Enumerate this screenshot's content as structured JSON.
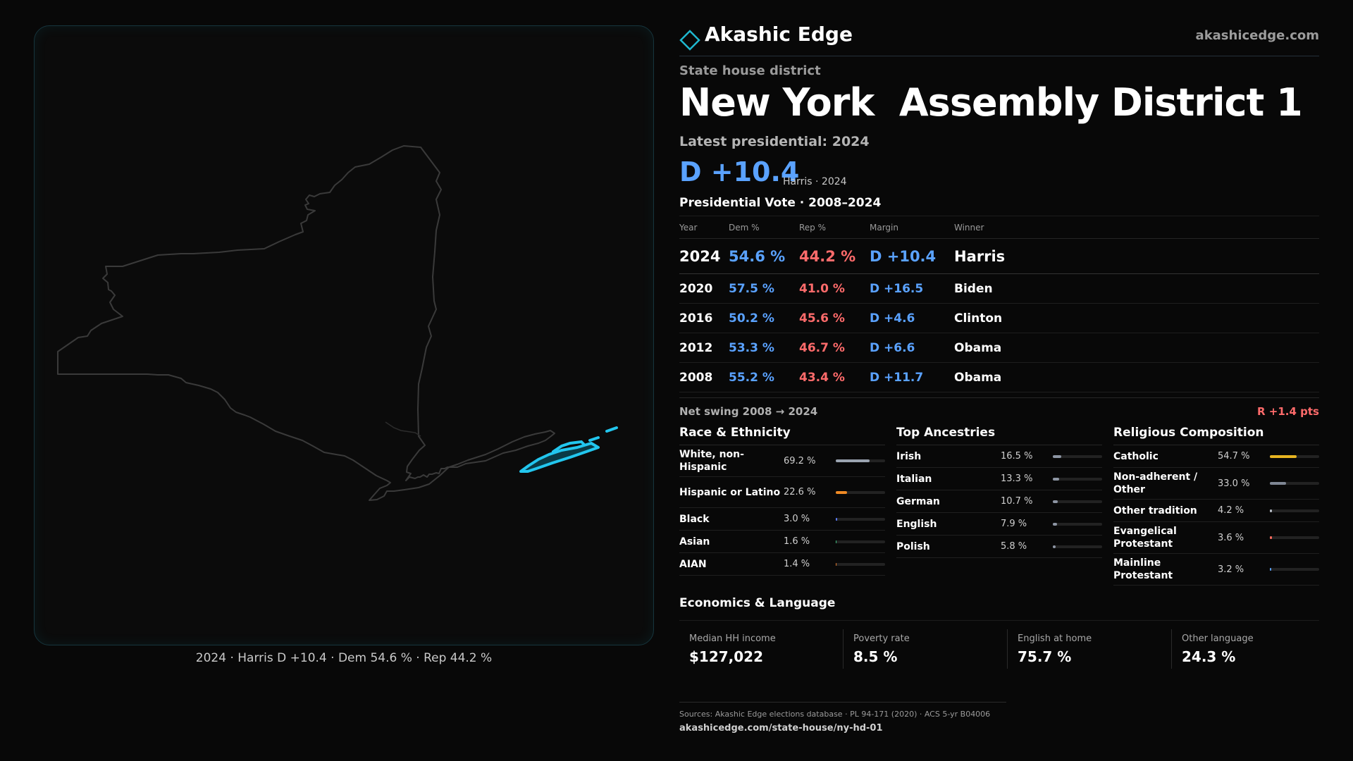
{
  "brand": {
    "name": "Akashic Edge",
    "url": "akashicedge.com",
    "logo_icon": "diamond-outline-icon",
    "accent": "#1fb8d0"
  },
  "header": {
    "kicker": "State house district",
    "title": "New York  Assembly District 1",
    "latest_label": "Latest presidential: 2024",
    "latest_margin": "D +10.4",
    "latest_sub": "Harris · 2024"
  },
  "colors": {
    "dem": "#5aa2ff",
    "rep": "#ff6b6b",
    "district_highlight": "#22c6ee"
  },
  "presidential": {
    "title": "Presidential Vote · 2008–2024",
    "headers": {
      "year": "Year",
      "dem": "Dem %",
      "rep": "Rep %",
      "margin": "Margin",
      "winner": "Winner"
    },
    "rows": [
      {
        "year": "2024",
        "dem": "54.6 %",
        "rep": "44.2 %",
        "margin": "D +10.4",
        "winner": "Harris"
      },
      {
        "year": "2020",
        "dem": "57.5 %",
        "rep": "41.0 %",
        "margin": "D +16.5",
        "winner": "Biden"
      },
      {
        "year": "2016",
        "dem": "50.2 %",
        "rep": "45.6 %",
        "margin": "D +4.6",
        "winner": "Clinton"
      },
      {
        "year": "2012",
        "dem": "53.3 %",
        "rep": "46.7 %",
        "margin": "D +6.6",
        "winner": "Obama"
      },
      {
        "year": "2008",
        "dem": "55.2 %",
        "rep": "43.4 %",
        "margin": "D +11.7",
        "winner": "Obama"
      }
    ],
    "swing_label": "Net swing 2008 → 2024",
    "swing_value": "R +1.4 pts"
  },
  "race": {
    "title": "Race & Ethnicity",
    "items": [
      {
        "label": "White, non-Hispanic",
        "value": "69.2 %",
        "pct": 69.2,
        "color": "#9aa3b0"
      },
      {
        "label": "Hispanic or Latino",
        "value": "22.6 %",
        "pct": 22.6,
        "color": "#f08a24"
      },
      {
        "label": "Black",
        "value": "3.0 %",
        "pct": 3.0,
        "color": "#5b7cff"
      },
      {
        "label": "Asian",
        "value": "1.6 %",
        "pct": 1.6,
        "color": "#3fbf7f"
      },
      {
        "label": "AIAN",
        "value": "1.4 %",
        "pct": 1.4,
        "color": "#e0762a"
      }
    ]
  },
  "ancestry": {
    "title": "Top Ancestries",
    "items": [
      {
        "label": "Irish",
        "value": "16.5 %",
        "pct": 16.5,
        "color": "#8d95a3"
      },
      {
        "label": "Italian",
        "value": "13.3 %",
        "pct": 13.3,
        "color": "#8d95a3"
      },
      {
        "label": "German",
        "value": "10.7 %",
        "pct": 10.7,
        "color": "#8d95a3"
      },
      {
        "label": "English",
        "value": "7.9 %",
        "pct": 7.9,
        "color": "#8d95a3"
      },
      {
        "label": "Polish",
        "value": "5.8 %",
        "pct": 5.8,
        "color": "#8d95a3"
      }
    ]
  },
  "religion": {
    "title": "Religious Composition",
    "items": [
      {
        "label": "Catholic",
        "value": "54.7 %",
        "pct": 54.7,
        "color": "#e7b421"
      },
      {
        "label": "Non-adherent / Other",
        "value": "33.0 %",
        "pct": 33.0,
        "color": "#7f8794"
      },
      {
        "label": "Other tradition",
        "value": "4.2 %",
        "pct": 4.2,
        "color": "#b8bec8"
      },
      {
        "label": "Evangelical Protestant",
        "value": "3.6 %",
        "pct": 3.6,
        "color": "#ff6b5e"
      },
      {
        "label": "Mainline Protestant",
        "value": "3.2 %",
        "pct": 3.2,
        "color": "#5aa2ff"
      }
    ]
  },
  "economics": {
    "title": "Economics & Language",
    "items": [
      {
        "label": "Median HH income",
        "value": "$127,022"
      },
      {
        "label": "Poverty rate",
        "value": "8.5 %"
      },
      {
        "label": "English at home",
        "value": "75.7 %"
      },
      {
        "label": "Other language",
        "value": "24.3 %"
      }
    ]
  },
  "sources": {
    "line": "Sources: Akashic Edge elections database · PL 94-171 (2020) · ACS 5-yr B04006",
    "url": "akashicedge.com/state-house/ny-hd-01"
  },
  "map": {
    "caption": "2024 · Harris D +10.4 · Dem 54.6 % · Rep 44.2 %"
  }
}
